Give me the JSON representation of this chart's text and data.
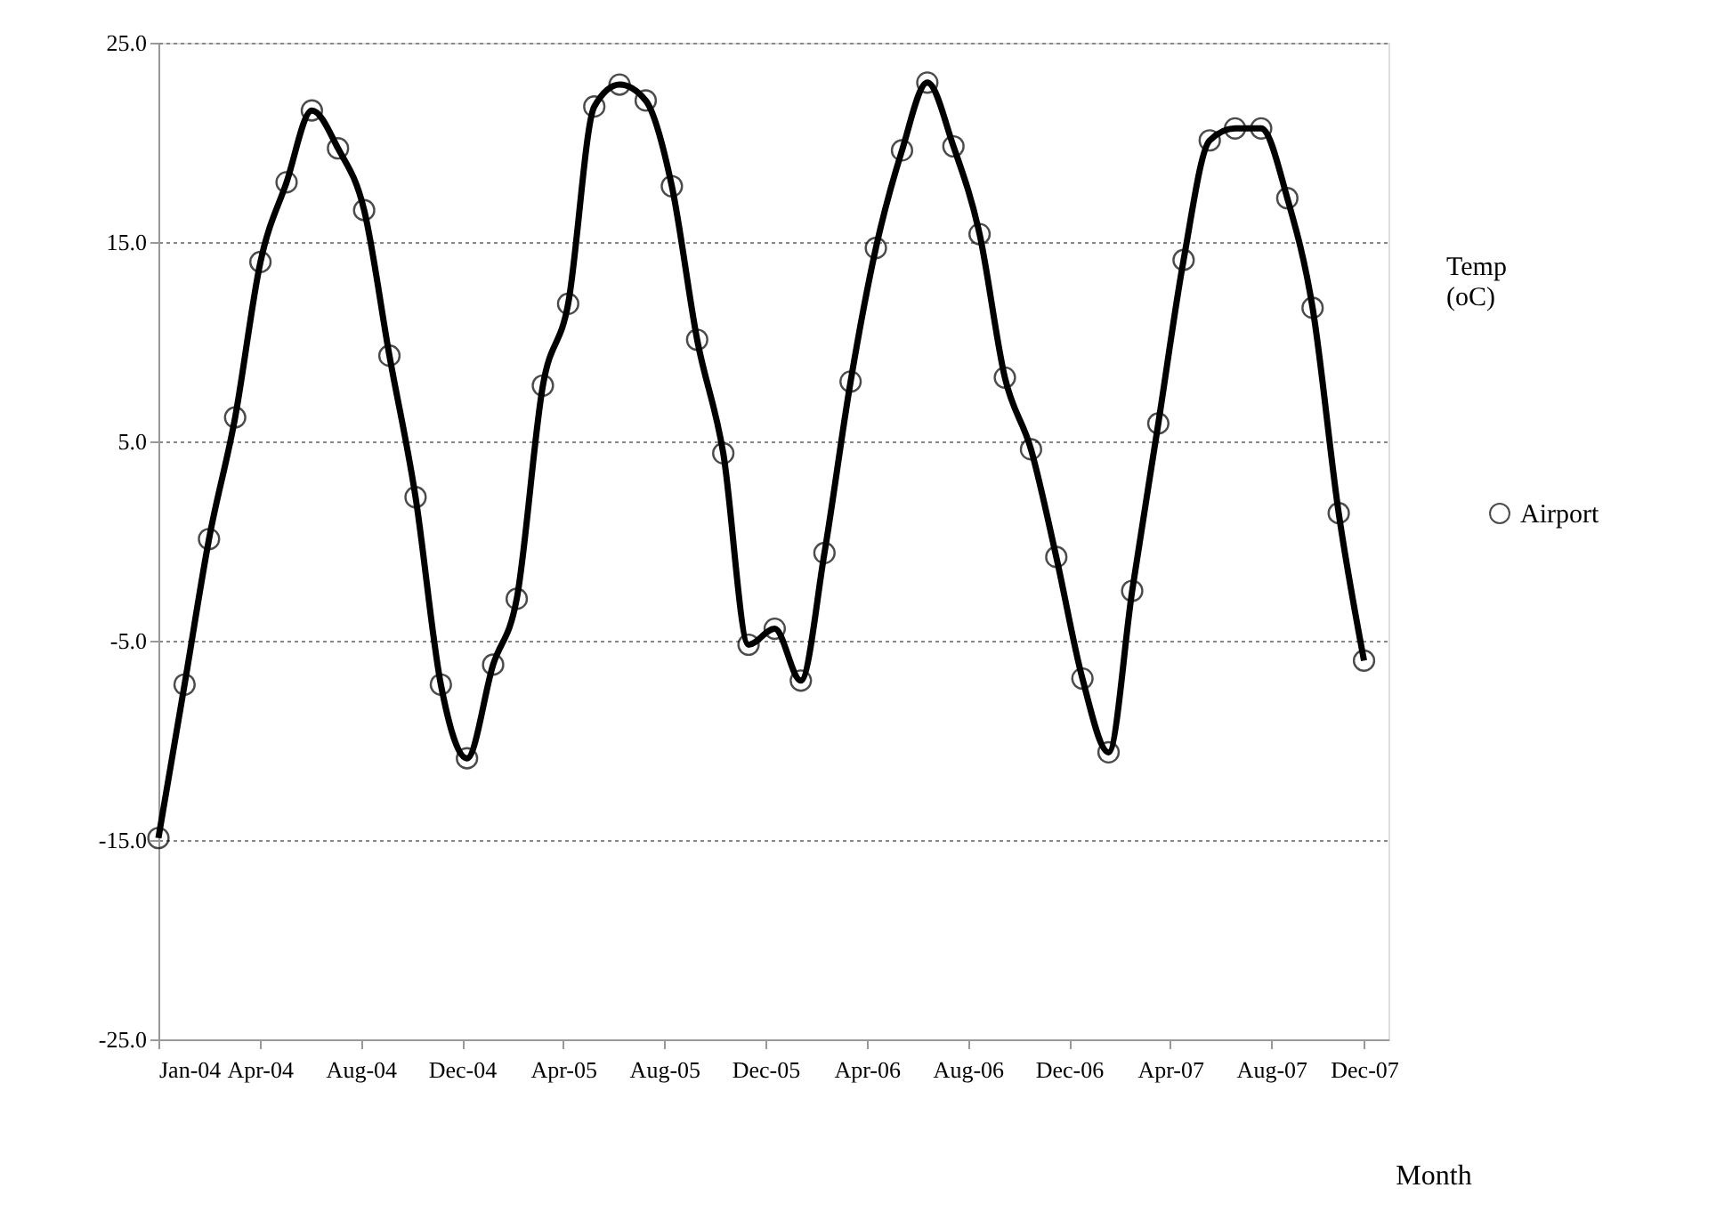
{
  "chart_data": {
    "type": "line",
    "xlabel": "Month",
    "ylabel": "Temp (oC)",
    "x": [
      "2004-01",
      "2004-02",
      "2004-03",
      "2004-04",
      "2004-05",
      "2004-06",
      "2004-07",
      "2004-08",
      "2004-09",
      "2004-10",
      "2004-11",
      "2004-12",
      "2005-01",
      "2005-02",
      "2005-03",
      "2005-04",
      "2005-05",
      "2005-06",
      "2005-07",
      "2005-08",
      "2005-09",
      "2005-10",
      "2005-11",
      "2005-12",
      "2006-01",
      "2006-02",
      "2006-03",
      "2006-04",
      "2006-05",
      "2006-06",
      "2006-07",
      "2006-08",
      "2006-09",
      "2006-10",
      "2006-11",
      "2006-12",
      "2007-01",
      "2007-02",
      "2007-03",
      "2007-04",
      "2007-05",
      "2007-06",
      "2007-07",
      "2007-08",
      "2007-09",
      "2007-10",
      "2007-11",
      "2007-12"
    ],
    "series": [
      {
        "name": "Airport",
        "color": "#000000",
        "values": [
          -14.9,
          -7.2,
          0.1,
          6.2,
          14.0,
          18.0,
          21.6,
          19.7,
          16.6,
          9.3,
          2.2,
          -7.2,
          -10.9,
          -6.2,
          -2.9,
          7.8,
          11.9,
          21.8,
          22.9,
          22.1,
          17.8,
          10.1,
          4.4,
          -5.2,
          -4.4,
          -7.0,
          -0.6,
          8.0,
          14.7,
          19.6,
          23.0,
          19.8,
          15.4,
          8.2,
          4.6,
          -0.8,
          -6.9,
          -10.6,
          -2.5,
          5.9,
          14.1,
          20.1,
          20.7,
          20.7,
          17.2,
          11.7,
          1.4,
          -6.0
        ]
      }
    ],
    "xlim": [
      "2004-01-01",
      "2007-12-30"
    ],
    "xticks": [
      {
        "value": "2004-01-01",
        "label": "Jan-04"
      },
      {
        "value": "2004-04-30",
        "label": "Apr-04"
      },
      {
        "value": "2004-08-28",
        "label": "Aug-04"
      },
      {
        "value": "2004-12-26",
        "label": "Dec-04"
      },
      {
        "value": "2005-04-25",
        "label": "Apr-05"
      },
      {
        "value": "2005-08-23",
        "label": "Aug-05"
      },
      {
        "value": "2005-12-21",
        "label": "Dec-05"
      },
      {
        "value": "2006-04-20",
        "label": "Apr-06"
      },
      {
        "value": "2006-08-18",
        "label": "Aug-06"
      },
      {
        "value": "2006-12-16",
        "label": "Dec-06"
      },
      {
        "value": "2007-04-15",
        "label": "Apr-07"
      },
      {
        "value": "2007-08-13",
        "label": "Aug-07"
      },
      {
        "value": "2007-12-01",
        "label": "Dec-07"
      }
    ],
    "ylim": [
      -25,
      25
    ],
    "yticks": [
      {
        "value": -25,
        "label": "-25.0"
      },
      {
        "value": -15,
        "label": "-15.0"
      },
      {
        "value": -5,
        "label": "-5.0"
      },
      {
        "value": 5,
        "label": "5.0"
      },
      {
        "value": 15,
        "label": "15.0"
      },
      {
        "value": 25,
        "label": "25.0"
      }
    ],
    "grid": "y",
    "legend": "right",
    "marker": "circle",
    "line_style": "solid"
  }
}
